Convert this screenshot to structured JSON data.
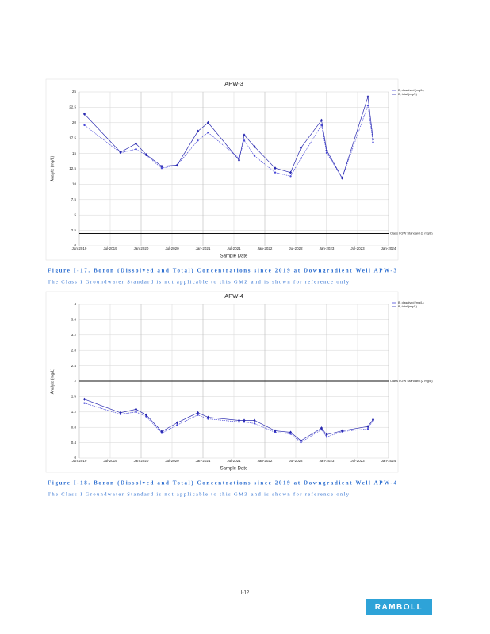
{
  "chart_data": [
    {
      "type": "line",
      "title": "APW-3",
      "xlabel": "Sample Date",
      "ylabel": "Analyte (mg/L)",
      "x": [
        "2019-02",
        "2019-09",
        "2019-12",
        "2020-02",
        "2020-05",
        "2020-08",
        "2020-12",
        "2021-02",
        "2021-08",
        "2021-09",
        "2021-11",
        "2022-03",
        "2022-06",
        "2022-08",
        "2022-12",
        "2023-01",
        "2023-04",
        "2023-09",
        "2023-10"
      ],
      "series": [
        {
          "name": "B, dissolved (mg/L)",
          "color": "#4a4ad8",
          "values": [
            19.6,
            15.1,
            15.7,
            14.7,
            12.6,
            13.1,
            17.1,
            18.4,
            14.2,
            17.1,
            14.6,
            11.9,
            11.3,
            14.2,
            19.6,
            15.1,
            11.0,
            22.8,
            16.8
          ]
        },
        {
          "name": "B, total (mg/L)",
          "color": "#2a2ab0",
          "values": [
            21.4,
            15.2,
            16.6,
            14.8,
            12.9,
            13.1,
            18.6,
            20.0,
            13.9,
            18.0,
            16.1,
            12.6,
            11.9,
            15.9,
            20.4,
            15.5,
            11.0,
            24.2,
            17.3
          ]
        }
      ],
      "standard": {
        "value": 2,
        "label": "Class I GW Standard (2 mg/L)"
      },
      "xlim": [
        "2019-01",
        "2024-01"
      ],
      "xticks": [
        {
          "value": "2019-01",
          "label": "Jan-2019"
        },
        {
          "value": "2019-07",
          "label": "Jul-2019"
        },
        {
          "value": "2020-01",
          "label": "Jan-2020"
        },
        {
          "value": "2020-07",
          "label": "Jul-2020"
        },
        {
          "value": "2021-01",
          "label": "Jan-2021"
        },
        {
          "value": "2021-07",
          "label": "Jul-2021"
        },
        {
          "value": "2022-01",
          "label": "Jan-2022"
        },
        {
          "value": "2022-07",
          "label": "Jul-2022"
        },
        {
          "value": "2023-01",
          "label": "Jan-2023"
        },
        {
          "value": "2023-07",
          "label": "Jul-2023"
        },
        {
          "value": "2024-01",
          "label": "Jan-2024"
        }
      ],
      "ylim": [
        0,
        25
      ],
      "yticks": [
        0,
        2.5,
        5,
        7.5,
        10,
        12.5,
        15,
        17.5,
        20,
        22.5,
        25
      ],
      "grid": true,
      "legend": "top-right",
      "caption": "Figure I-17. Boron (Dissolved and Total) Concentrations since 2019 at Downgradient Well APW-3",
      "note": "The Class I Groundwater Standard is not applicable to this GMZ and is shown for reference only"
    },
    {
      "type": "line",
      "title": "APW-4",
      "xlabel": "Sample Date",
      "ylabel": "Analyte (mg/L)",
      "x": [
        "2019-02",
        "2019-09",
        "2019-12",
        "2020-02",
        "2020-05",
        "2020-08",
        "2020-12",
        "2021-02",
        "2021-08",
        "2021-09",
        "2021-11",
        "2022-03",
        "2022-06",
        "2022-08",
        "2022-12",
        "2023-01",
        "2023-04",
        "2023-09",
        "2023-10"
      ],
      "series": [
        {
          "name": "B, dissolved (mg/L)",
          "color": "#4a4ad8",
          "values": [
            1.43,
            1.14,
            1.2,
            1.08,
            0.65,
            0.86,
            1.12,
            1.02,
            0.94,
            0.94,
            0.9,
            0.67,
            0.63,
            0.41,
            0.74,
            0.55,
            0.69,
            0.76,
            0.98
          ]
        },
        {
          "name": "B, total (mg/L)",
          "color": "#2a2ab0",
          "values": [
            1.53,
            1.18,
            1.27,
            1.12,
            0.69,
            0.92,
            1.18,
            1.06,
            0.98,
            0.98,
            0.98,
            0.71,
            0.67,
            0.45,
            0.78,
            0.61,
            0.71,
            0.82,
            1.0
          ]
        }
      ],
      "standard": {
        "value": 2,
        "label": "Class I GW Standard (2 mg/L)"
      },
      "xlim": [
        "2019-01",
        "2024-01"
      ],
      "xticks": [
        {
          "value": "2019-01",
          "label": "Jan-2019"
        },
        {
          "value": "2019-07",
          "label": "Jul-2019"
        },
        {
          "value": "2020-01",
          "label": "Jan-2020"
        },
        {
          "value": "2020-07",
          "label": "Jul-2020"
        },
        {
          "value": "2021-01",
          "label": "Jan-2021"
        },
        {
          "value": "2021-07",
          "label": "Jul-2021"
        },
        {
          "value": "2022-01",
          "label": "Jan-2022"
        },
        {
          "value": "2022-07",
          "label": "Jul-2022"
        },
        {
          "value": "2023-01",
          "label": "Jan-2023"
        },
        {
          "value": "2023-07",
          "label": "Jul-2023"
        },
        {
          "value": "2024-01",
          "label": "Jan-2024"
        }
      ],
      "ylim": [
        0,
        4
      ],
      "yticks": [
        0,
        0.4,
        0.8,
        1.2,
        1.6,
        2,
        2.4,
        2.8,
        3.2,
        3.6,
        4
      ],
      "grid": true,
      "legend": "top-right",
      "caption": "Figure I-18. Boron (Dissolved and Total) Concentrations since 2019 at Downgradient Well APW-4",
      "note": "The Class I Groundwater Standard is not applicable to this GMZ and is shown for reference only"
    }
  ],
  "page_number": "I-12",
  "logo": "RAMBOLL"
}
